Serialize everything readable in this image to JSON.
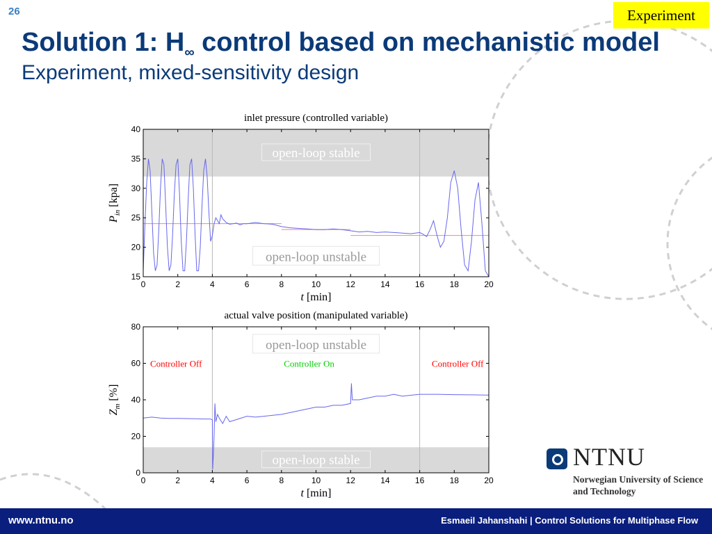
{
  "slide": {
    "number": "26",
    "tag": "Experiment",
    "title": "Solution 1: H",
    "title_sub": "∞",
    "title_rest": " control based on mechanistic model",
    "subtitle": "Experiment, mixed-sensitivity design"
  },
  "footer": {
    "url": "www.ntnu.no",
    "credit": "Esmaeil Jahanshahi  |  Control Solutions for Multiphase Flow"
  },
  "logo": {
    "name": "NTNU",
    "full_name": "Norwegian University of Science and Technology",
    "icon": "ntnu-logo-icon"
  },
  "colors": {
    "title": "#0b3a78",
    "footer": "#0a1e7d",
    "tag": "#ffff00",
    "series": "#6666ee",
    "setpoint": "#ff8080",
    "shade": "#d9d9d9",
    "controller_off": "#ff0000",
    "controller_on": "#00cc00"
  },
  "chart_data": [
    {
      "type": "line",
      "title": "inlet pressure (controlled variable)",
      "ylabel": "P_in [kpa]",
      "ylabel_main": "P",
      "ylabel_sub": "in",
      "ylabel_unit": "[kpa]",
      "xlabel_var": "t",
      "xlabel_unit": "[min]",
      "xlim": [
        0,
        20
      ],
      "ylim": [
        15,
        40
      ],
      "xticks": [
        0,
        2,
        4,
        6,
        8,
        10,
        12,
        14,
        16,
        18,
        20
      ],
      "yticks": [
        15,
        20,
        25,
        30,
        35,
        40
      ],
      "shaded_bands": [
        {
          "y": [
            32,
            40
          ],
          "label": "open-loop stable",
          "label_y": 36
        }
      ],
      "annotations": [
        {
          "text": "open-loop unstable",
          "x": 10,
          "y": 18.5
        }
      ],
      "vlines": [
        4,
        16
      ],
      "setpoint": [
        {
          "x": [
            0,
            8
          ],
          "y": 24
        },
        {
          "x": [
            8,
            12
          ],
          "y": 23
        },
        {
          "x": [
            12,
            20
          ],
          "y": 22
        }
      ],
      "series": [
        {
          "x": [
            0,
            0.1,
            0.2,
            0.3,
            0.4,
            0.5,
            0.6,
            0.7,
            0.8,
            0.9,
            1.0,
            1.1,
            1.2,
            1.3,
            1.4,
            1.5,
            1.6,
            1.7,
            1.8,
            1.9,
            2.0,
            2.1,
            2.2,
            2.3,
            2.4,
            2.5,
            2.6,
            2.7,
            2.8,
            2.9,
            3.0,
            3.1,
            3.2,
            3.3,
            3.4,
            3.5,
            3.6,
            3.7,
            3.8,
            3.9,
            4.0,
            4.1,
            4.2,
            4.3,
            4.4,
            4.5,
            4.6,
            4.8,
            5.0,
            5.2,
            5.4,
            5.6,
            5.8,
            6.0,
            6.5,
            7.0,
            7.5,
            8.0,
            8.5,
            9.0,
            9.5,
            10.0,
            10.5,
            11.0,
            11.5,
            12.0,
            12.5,
            13.0,
            13.5,
            14.0,
            14.5,
            15.0,
            15.5,
            16.0,
            16.2,
            16.4,
            16.6,
            16.8,
            17.0,
            17.2,
            17.4,
            17.6,
            17.8,
            18.0,
            18.2,
            18.4,
            18.6,
            18.8,
            19.0,
            19.2,
            19.4,
            19.6,
            19.8,
            20.0
          ],
          "y": [
            16,
            24,
            31,
            35,
            33,
            26,
            19,
            16,
            17,
            23,
            30,
            35,
            34,
            27,
            20,
            16,
            17,
            22,
            29,
            34,
            35,
            29,
            21,
            16,
            16,
            21,
            28,
            34,
            35,
            30,
            22,
            16,
            16,
            20,
            27,
            33,
            35,
            32,
            26,
            21,
            22,
            24,
            25,
            24.5,
            24,
            25.5,
            24.8,
            24.2,
            23.9,
            24,
            24.1,
            23.8,
            24,
            24,
            24.2,
            24,
            23.9,
            23.5,
            23.3,
            23.2,
            23.1,
            23,
            23,
            23.1,
            23,
            22.8,
            22.6,
            22.7,
            22.5,
            22.6,
            22.5,
            22.4,
            22.3,
            22.5,
            22.2,
            21.8,
            23,
            24.5,
            22,
            20,
            21,
            25,
            31,
            33,
            30,
            23,
            17,
            16,
            21,
            28,
            31,
            24,
            16,
            15
          ]
        }
      ]
    },
    {
      "type": "line",
      "title": "actual valve position (manipulated variable)",
      "ylabel": "Z_m [%]",
      "ylabel_main": "Z",
      "ylabel_sub": "m",
      "ylabel_unit": "[%]",
      "xlabel_var": "t",
      "xlabel_unit": "[min]",
      "xlim": [
        0,
        20
      ],
      "ylim": [
        0,
        80
      ],
      "xticks": [
        0,
        2,
        4,
        6,
        8,
        10,
        12,
        14,
        16,
        18,
        20
      ],
      "yticks": [
        0,
        20,
        40,
        60,
        80
      ],
      "shaded_bands": [
        {
          "y": [
            0,
            14
          ],
          "label": "open-loop stable",
          "label_y": 7
        }
      ],
      "annotations": [
        {
          "text": "open-loop unstable",
          "x": 10,
          "y": 70.5
        },
        {
          "text": "Controller Off",
          "x": 1.9,
          "y": 60,
          "color": "controller_off"
        },
        {
          "text": "Controller On",
          "x": 9.6,
          "y": 60,
          "color": "controller_on"
        },
        {
          "text": "Controller Off",
          "x": 18.2,
          "y": 60,
          "color": "controller_off"
        }
      ],
      "vlines": [
        4,
        16
      ],
      "series": [
        {
          "x": [
            0,
            0.5,
            1.0,
            1.5,
            2.0,
            2.5,
            3.0,
            3.5,
            3.9,
            4.0,
            4.02,
            4.06,
            4.1,
            4.15,
            4.2,
            4.3,
            4.4,
            4.6,
            4.8,
            5.0,
            5.5,
            6.0,
            6.5,
            7.0,
            7.5,
            8.0,
            8.5,
            9.0,
            9.5,
            10.0,
            10.5,
            11.0,
            11.5,
            12.0,
            12.05,
            12.1,
            12.5,
            13.0,
            13.5,
            14.0,
            14.5,
            15.0,
            15.5,
            16.0,
            16.5,
            17.0,
            18.0,
            19.0,
            20.0
          ],
          "y": [
            30,
            30.5,
            30,
            29.8,
            29.8,
            29.7,
            29.6,
            29.5,
            29.5,
            29,
            2,
            10,
            20,
            38,
            28,
            32,
            30,
            27,
            31,
            28,
            29.5,
            31,
            30.5,
            31,
            31.5,
            32,
            33,
            34,
            35,
            36,
            36,
            37,
            37,
            38,
            49,
            40,
            40,
            41,
            42,
            42,
            43,
            42,
            42.5,
            43,
            43,
            43,
            42.8,
            42.7,
            42.6
          ]
        }
      ]
    }
  ]
}
